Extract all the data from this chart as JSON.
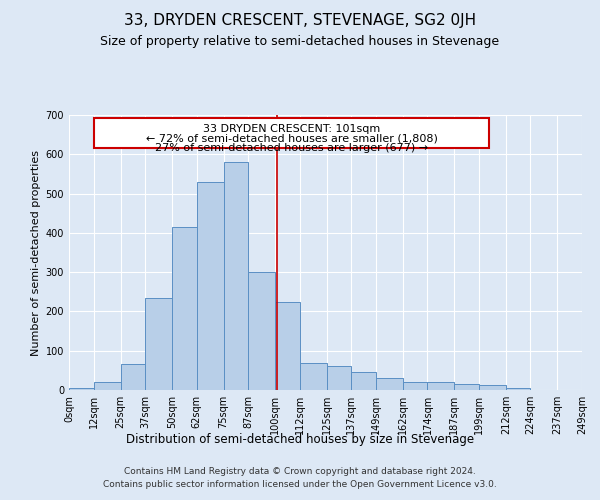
{
  "title": "33, DRYDEN CRESCENT, STEVENAGE, SG2 0JH",
  "subtitle": "Size of property relative to semi-detached houses in Stevenage",
  "xlabel": "Distribution of semi-detached houses by size in Stevenage",
  "ylabel": "Number of semi-detached properties",
  "footer_line1": "Contains HM Land Registry data © Crown copyright and database right 2024.",
  "footer_line2": "Contains public sector information licensed under the Open Government Licence v3.0.",
  "annotation_title": "33 DRYDEN CRESCENT: 101sqm",
  "annotation_line1": "← 72% of semi-detached houses are smaller (1,808)",
  "annotation_line2": "27% of semi-detached houses are larger (677) →",
  "property_size": 101,
  "bin_edges": [
    0,
    12,
    25,
    37,
    50,
    62,
    75,
    87,
    100,
    112,
    125,
    137,
    149,
    162,
    174,
    187,
    199,
    212,
    224,
    237,
    249
  ],
  "bin_labels": [
    "0sqm",
    "12sqm",
    "25sqm",
    "37sqm",
    "50sqm",
    "62sqm",
    "75sqm",
    "87sqm",
    "100sqm",
    "112sqm",
    "125sqm",
    "137sqm",
    "149sqm",
    "162sqm",
    "174sqm",
    "187sqm",
    "199sqm",
    "212sqm",
    "224sqm",
    "237sqm",
    "249sqm"
  ],
  "bar_heights": [
    5,
    20,
    65,
    235,
    415,
    530,
    580,
    300,
    225,
    70,
    60,
    45,
    30,
    20,
    20,
    15,
    12,
    5,
    0,
    0
  ],
  "bar_color": "#b8cfe8",
  "bar_edge_color": "#5a8fc4",
  "vline_color": "#cc0000",
  "vline_x": 101,
  "box_color": "#cc0000",
  "ylim": [
    0,
    700
  ],
  "background_color": "#dde8f5",
  "plot_bg_color": "#dde8f5",
  "grid_color": "#ffffff",
  "title_fontsize": 11,
  "subtitle_fontsize": 9,
  "ylabel_fontsize": 8,
  "xlabel_fontsize": 8.5,
  "tick_fontsize": 7,
  "annotation_fontsize": 8,
  "footer_fontsize": 6.5
}
